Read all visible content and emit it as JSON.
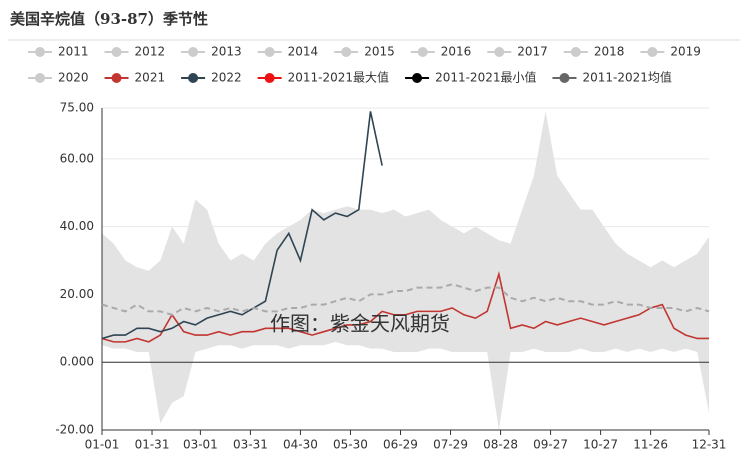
{
  "chart_data": {
    "type": "line",
    "title": "美国辛烷值（93-87）季节性",
    "watermark": "作图：紫金天风期货",
    "x": [
      0,
      7,
      14,
      21,
      28,
      35,
      42,
      49,
      56,
      63,
      70,
      77,
      84,
      91,
      98,
      105,
      112,
      119,
      126,
      133,
      140,
      147,
      154,
      161,
      168,
      175,
      182,
      189,
      196,
      203,
      210,
      217,
      224,
      231,
      238,
      245,
      252,
      259,
      266,
      273,
      280,
      287,
      294,
      301,
      308,
      315,
      322,
      329,
      336,
      343,
      350,
      357,
      364
    ],
    "xlim": [
      0,
      364
    ],
    "xticks": [
      {
        "value": 0,
        "label": "01-01"
      },
      {
        "value": 30,
        "label": "01-31"
      },
      {
        "value": 59,
        "label": "03-01"
      },
      {
        "value": 89,
        "label": "03-31"
      },
      {
        "value": 119,
        "label": "04-30"
      },
      {
        "value": 149,
        "label": "05-30"
      },
      {
        "value": 179,
        "label": "06-29"
      },
      {
        "value": 209,
        "label": "07-29"
      },
      {
        "value": 239,
        "label": "08-28"
      },
      {
        "value": 269,
        "label": "09-27"
      },
      {
        "value": 299,
        "label": "10-27"
      },
      {
        "value": 329,
        "label": "11-26"
      },
      {
        "value": 364,
        "label": "12-31"
      }
    ],
    "ylim": [
      -20,
      75
    ],
    "yticks": [
      {
        "value": 75,
        "label": "75.00"
      },
      {
        "value": 60,
        "label": "60.00"
      },
      {
        "value": 40,
        "label": "40.00"
      },
      {
        "value": 20,
        "label": "20.00"
      },
      {
        "value": 0,
        "label": "0.000"
      },
      {
        "value": -20,
        "label": "-20.00"
      }
    ],
    "grid": true,
    "band_color": "#e3e3e3",
    "series": [
      {
        "name": "2011",
        "color": "#cccccc",
        "hidden": true
      },
      {
        "name": "2012",
        "color": "#cccccc",
        "hidden": true
      },
      {
        "name": "2013",
        "color": "#cccccc",
        "hidden": true
      },
      {
        "name": "2014",
        "color": "#cccccc",
        "hidden": true
      },
      {
        "name": "2015",
        "color": "#cccccc",
        "hidden": true
      },
      {
        "name": "2016",
        "color": "#cccccc",
        "hidden": true
      },
      {
        "name": "2017",
        "color": "#cccccc",
        "hidden": true
      },
      {
        "name": "2018",
        "color": "#cccccc",
        "hidden": true
      },
      {
        "name": "2019",
        "color": "#cccccc",
        "hidden": true
      },
      {
        "name": "2020",
        "color": "#cccccc",
        "hidden": true
      },
      {
        "name": "2021",
        "color": "#c23531",
        "values": [
          7,
          6,
          6,
          7,
          6,
          8,
          14,
          9,
          8,
          8,
          9,
          8,
          9,
          9,
          10,
          10,
          10,
          9,
          8,
          9,
          10,
          11,
          11,
          12,
          15,
          14,
          14,
          15,
          15,
          15,
          16,
          14,
          13,
          15,
          26,
          10,
          11,
          10,
          12,
          11,
          12,
          13,
          12,
          11,
          12,
          13,
          14,
          16,
          17,
          10,
          8,
          7,
          7
        ]
      },
      {
        "name": "2022",
        "color": "#2f4554",
        "values": [
          7,
          8,
          8,
          10,
          10,
          9,
          10,
          12,
          11,
          13,
          14,
          15,
          14,
          16,
          18,
          33,
          38,
          30,
          45,
          42,
          44,
          43,
          45,
          74,
          58,
          null,
          null,
          null,
          null,
          null,
          null,
          null,
          null,
          null,
          null,
          null,
          null,
          null,
          null,
          null,
          null,
          null,
          null,
          null,
          null,
          null,
          null,
          null,
          null,
          null,
          null,
          null,
          null
        ]
      },
      {
        "name": "2011-2021最大值",
        "color": "#ee1111",
        "role": "max",
        "values": [
          38,
          35,
          30,
          28,
          27,
          30,
          40,
          35,
          48,
          45,
          35,
          30,
          32,
          30,
          35,
          38,
          40,
          42,
          45,
          44,
          45,
          46,
          45,
          45,
          44,
          45,
          43,
          44,
          45,
          42,
          40,
          38,
          40,
          38,
          36,
          35,
          45,
          55,
          74,
          55,
          50,
          45,
          45,
          40,
          35,
          32,
          30,
          28,
          30,
          28,
          30,
          32,
          37
        ]
      },
      {
        "name": "2011-2021最小值",
        "color": "#000000",
        "role": "min",
        "values": [
          5,
          4,
          4,
          3,
          3,
          -18,
          -12,
          -10,
          3,
          4,
          5,
          5,
          4,
          5,
          5,
          5,
          4,
          5,
          5,
          5,
          6,
          5,
          5,
          4,
          4,
          3,
          3,
          3,
          4,
          4,
          3,
          3,
          3,
          3,
          -20,
          3,
          3,
          4,
          3,
          3,
          3,
          4,
          3,
          3,
          4,
          3,
          4,
          3,
          4,
          3,
          4,
          3,
          -15
        ]
      },
      {
        "name": "2011-2021均值",
        "color": "#666666",
        "role": "mean",
        "values": [
          17,
          16,
          15,
          17,
          15,
          15,
          14,
          16,
          15,
          16,
          15,
          16,
          15,
          16,
          15,
          15,
          16,
          16,
          17,
          17,
          18,
          19,
          18,
          20,
          20,
          21,
          21,
          22,
          22,
          22,
          23,
          22,
          21,
          22,
          22,
          19,
          18,
          19,
          18,
          19,
          18,
          18,
          17,
          17,
          18,
          17,
          17,
          16,
          16,
          16,
          15,
          16,
          15
        ]
      }
    ]
  }
}
